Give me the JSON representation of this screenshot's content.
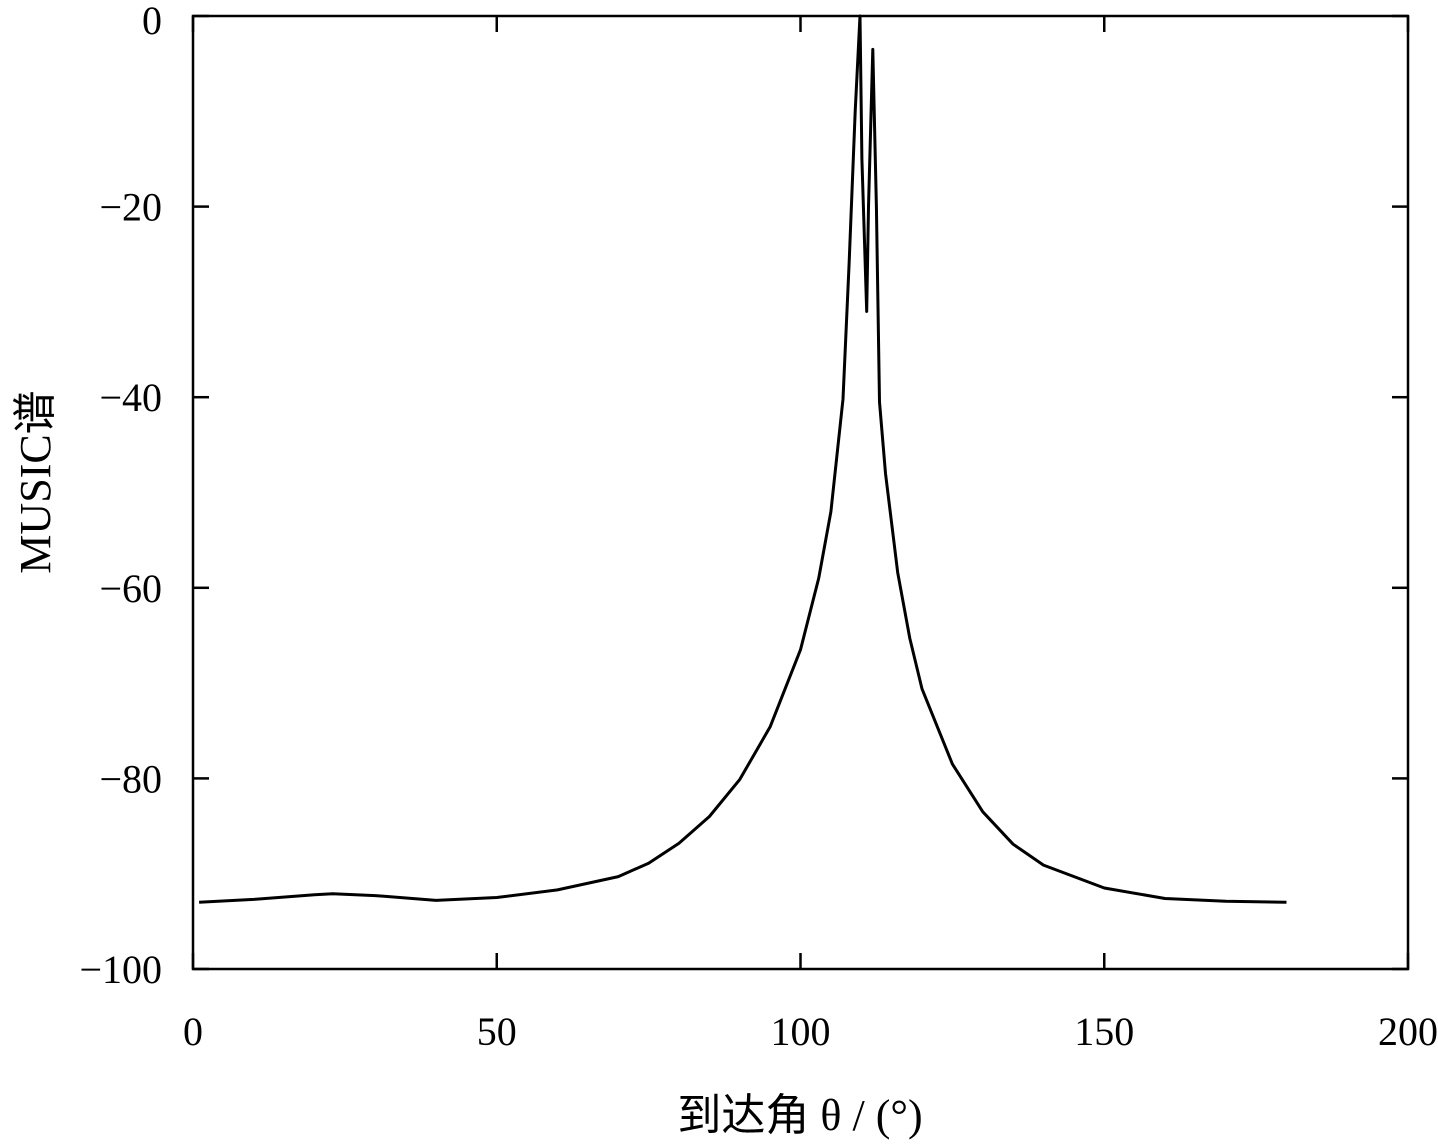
{
  "chart_data": {
    "type": "line",
    "title": "",
    "xlabel": "到达角 θ / (°)",
    "ylabel": "MUSIC谱",
    "xlim": [
      0,
      200
    ],
    "ylim": [
      -100,
      0
    ],
    "xticks": [
      0,
      50,
      100,
      150,
      200
    ],
    "yticks": [
      0,
      -20,
      -40,
      -60,
      -80,
      -100
    ],
    "xtick_labels": [
      "0",
      "50",
      "100",
      "150",
      "200"
    ],
    "ytick_labels": [
      "0",
      "−20",
      "−40",
      "−60",
      "−80",
      "−100"
    ],
    "grid": false,
    "colors": {
      "line": "#000000",
      "axes": "#000000"
    },
    "series": [
      {
        "x": [
          1,
          10,
          20,
          23,
          30,
          40,
          50,
          60,
          70,
          75,
          80,
          85,
          90,
          95,
          100,
          103,
          105,
          107,
          108,
          109,
          109.8,
          110.1,
          110.9,
          111.2,
          111.9,
          112.5,
          113,
          114,
          116,
          118,
          120,
          125,
          130,
          135,
          140,
          150,
          160,
          170,
          180
        ],
        "y": [
          -93,
          -92.7,
          -92.2,
          -92.1,
          -92.3,
          -92.8,
          -92.5,
          -91.7,
          -90.3,
          -88.9,
          -86.8,
          -84,
          -80.1,
          -74.6,
          -66.5,
          -59,
          -52,
          -40.2,
          -26,
          -10,
          0,
          -15,
          -31,
          -20,
          -3.5,
          -20,
          -40.5,
          -48,
          -58.4,
          -65.3,
          -70.6,
          -78.5,
          -83.5,
          -86.9,
          -89.1,
          -91.5,
          -92.6,
          -92.9,
          -93
        ]
      }
    ]
  }
}
